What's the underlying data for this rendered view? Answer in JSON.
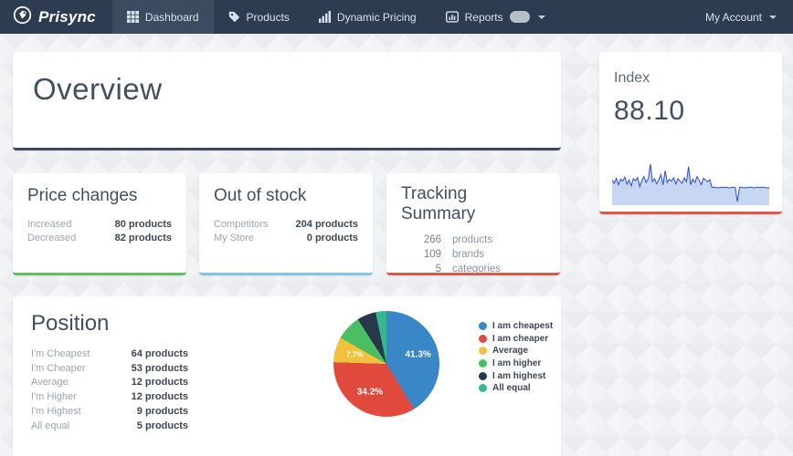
{
  "navbar": {
    "brand": "Prisync",
    "items": [
      {
        "label": "Dashboard",
        "icon": "grid-icon",
        "active": true
      },
      {
        "label": "Products",
        "icon": "tag-icon",
        "active": false
      },
      {
        "label": "Dynamic Pricing",
        "icon": "bars-icon",
        "active": false
      },
      {
        "label": "Reports",
        "icon": "report-icon",
        "active": false,
        "badge": "",
        "has_caret": true
      }
    ],
    "account_label": "My Account"
  },
  "overview": {
    "title": "Overview"
  },
  "index_card": {
    "title": "Index",
    "value": "88.10"
  },
  "price_changes": {
    "title": "Price changes",
    "rows": [
      {
        "label": "Increased",
        "value": "80 products"
      },
      {
        "label": "Decreased",
        "value": "82 products"
      }
    ]
  },
  "out_of_stock": {
    "title": "Out of stock",
    "rows": [
      {
        "label": "Competitors",
        "value": "204 products"
      },
      {
        "label": "My Store",
        "value": "0 products"
      }
    ]
  },
  "tracking_summary": {
    "title": "Tracking Summary",
    "rows": [
      {
        "value": "266",
        "label": "products"
      },
      {
        "value": "109",
        "label": "brands"
      },
      {
        "value": "5",
        "label": "categories"
      }
    ]
  },
  "position": {
    "title": "Position",
    "rows": [
      {
        "label": "I'm Cheapest",
        "value": "64 products"
      },
      {
        "label": "I'm Cheaper",
        "value": "53 products"
      },
      {
        "label": "Average",
        "value": "12 products"
      },
      {
        "label": "I'm Higher",
        "value": "12 products"
      },
      {
        "label": "I'm Highest",
        "value": "9 products"
      },
      {
        "label": "All equal",
        "value": "5 products"
      }
    ]
  },
  "chart_data": [
    {
      "type": "line",
      "name": "index-sparkline",
      "title": "Index trend",
      "ylim": [
        0,
        100
      ],
      "line_color": "#2b4fcb",
      "fill_color": "#c7d7f3",
      "values": [
        58,
        50,
        62,
        47,
        60,
        55,
        65,
        48,
        58,
        44,
        61,
        56,
        64,
        42,
        57,
        66,
        52,
        60,
        96,
        54,
        61,
        49,
        58,
        71,
        46,
        80,
        52,
        60,
        55,
        64,
        48,
        61,
        55,
        50,
        63,
        54,
        90,
        47,
        60,
        52,
        66,
        57,
        47,
        62,
        58,
        54,
        59,
        40,
        41,
        40,
        39,
        41,
        40,
        40,
        41,
        39,
        40,
        41,
        40,
        6,
        40,
        41,
        39,
        40,
        40,
        41,
        40,
        39,
        41,
        40,
        40,
        41,
        40,
        39,
        40
      ]
    },
    {
      "type": "pie",
      "name": "position-pie",
      "title": "Position distribution",
      "legend_position": "right",
      "slices": [
        {
          "label": "I am cheapest",
          "percent": 41.3,
          "percent_label": "41.3%",
          "color": "#3a87c8",
          "label_size": "big"
        },
        {
          "label": "I am cheaper",
          "percent": 34.2,
          "percent_label": "34.2%",
          "color": "#e2493d",
          "label_size": "big"
        },
        {
          "label": "Average",
          "percent": 7.7,
          "percent_label": "7.7%",
          "color": "#f0c23e",
          "label_size": "small"
        },
        {
          "label": "I am higher",
          "percent": 7.7,
          "percent_label": null,
          "color": "#4cbe62"
        },
        {
          "label": "I am highest",
          "percent": 5.8,
          "percent_label": null,
          "color": "#26384a"
        },
        {
          "label": "All equal",
          "percent": 3.3,
          "percent_label": null,
          "color": "#35b791"
        }
      ]
    }
  ]
}
